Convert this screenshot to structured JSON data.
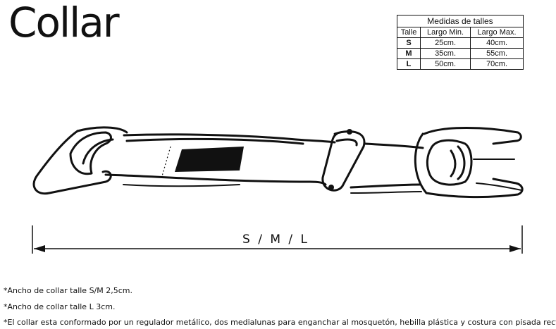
{
  "title": "Collar",
  "size_table": {
    "caption": "Medidas de talles",
    "headers": [
      "Talle",
      "Largo Min.",
      "Largo Max."
    ],
    "rows": [
      [
        "S",
        "25cm.",
        "40cm."
      ],
      [
        "M",
        "35cm.",
        "55cm."
      ],
      [
        "L",
        "50cm.",
        "70cm."
      ]
    ]
  },
  "measure_label": "S / M / L",
  "notes": [
    "*Ancho de collar talle S/M 2,5cm.",
    "*Ancho de collar talle L 3cm.",
    "*El collar esta conformado por un regulador metálico, dos medialunas para enganchar al mosquetón, hebilla plástica y costura con pisada recta."
  ]
}
